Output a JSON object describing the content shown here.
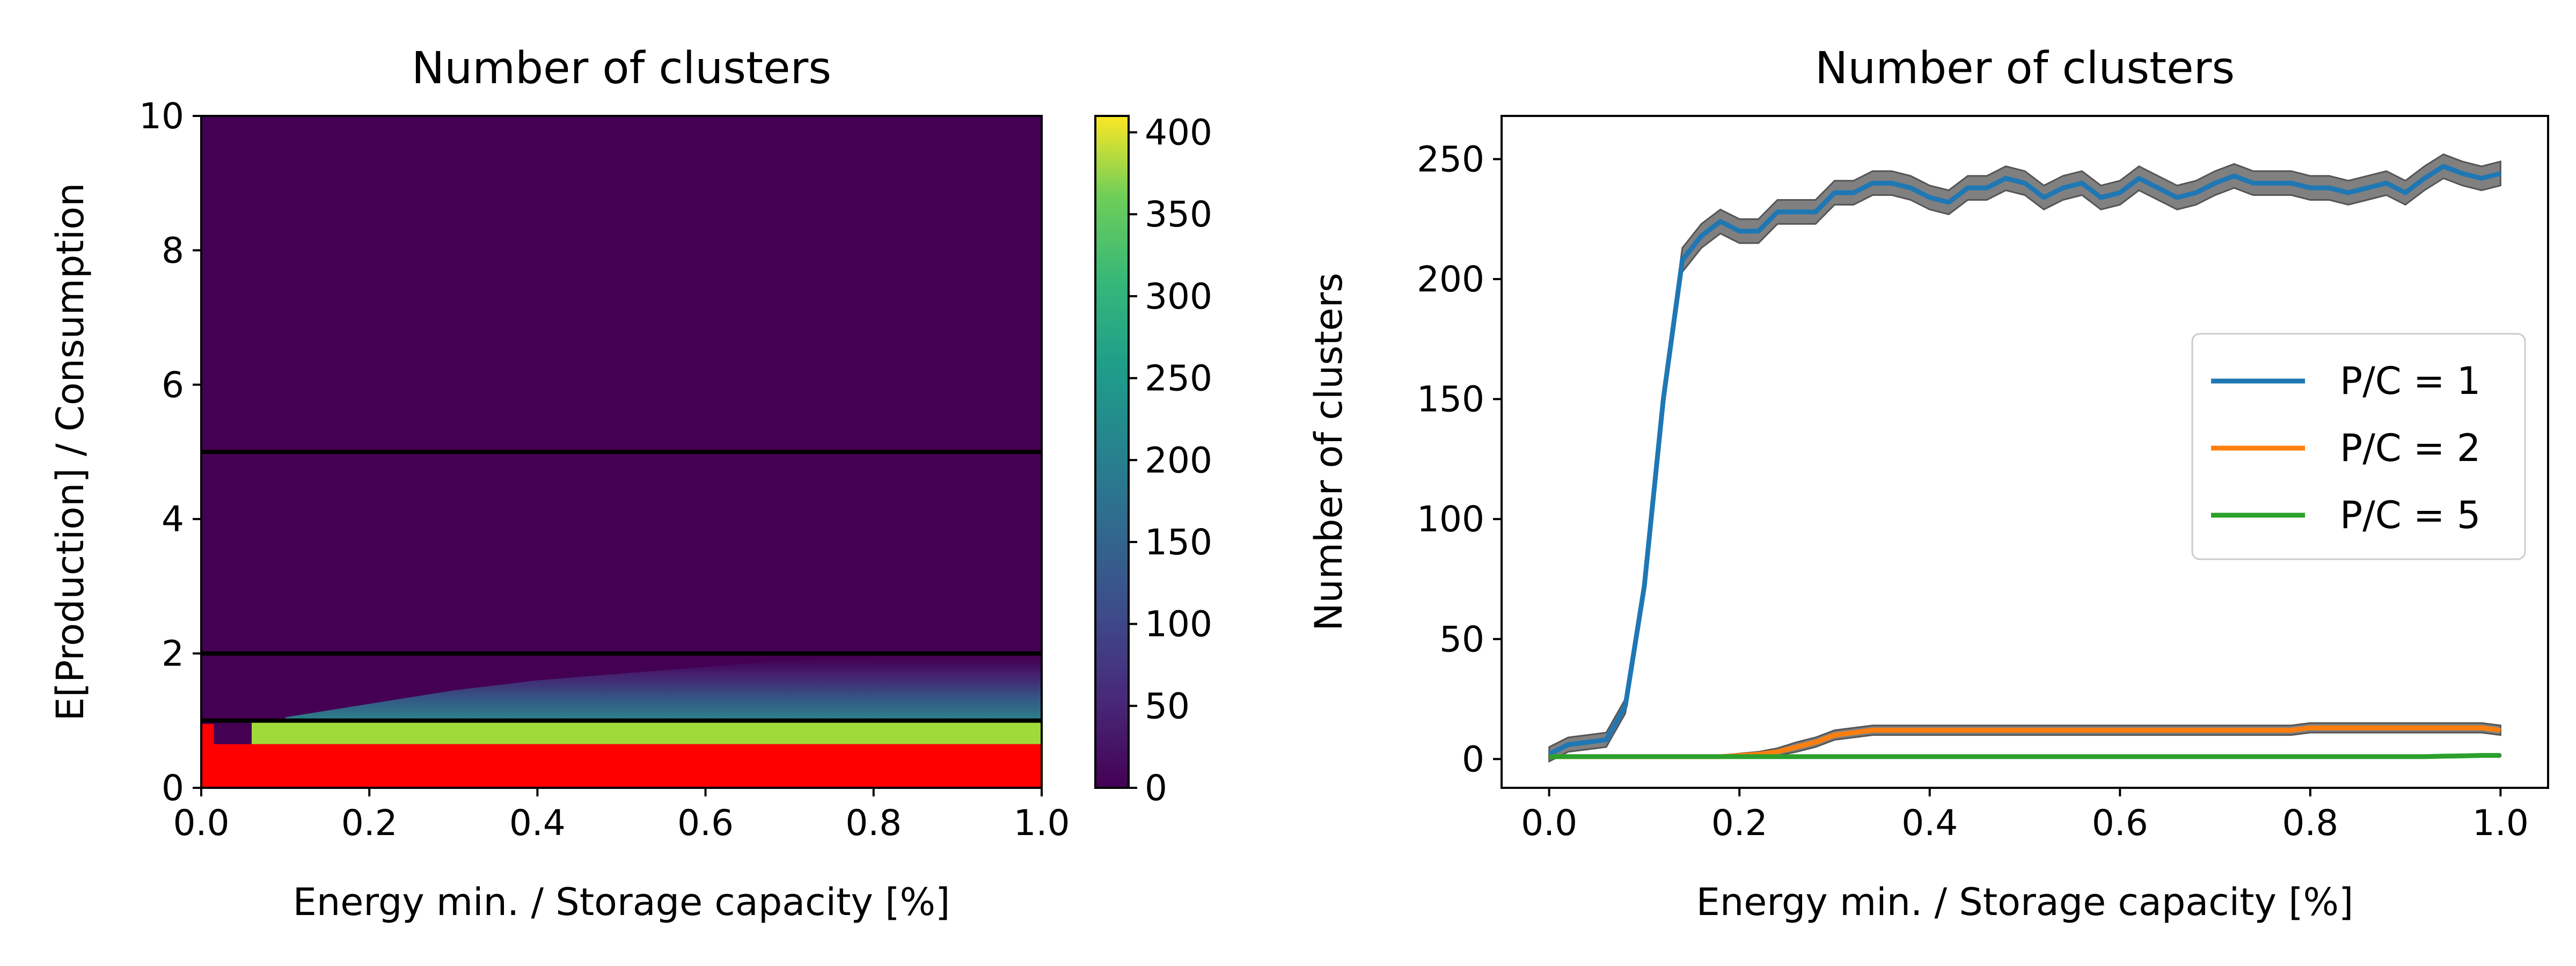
{
  "chart_data": [
    {
      "type": "heatmap",
      "title": "Number of clusters",
      "xlabel": "Energy min. / Storage capacity [%]",
      "ylabel": "E[Production] / Consumption",
      "xlim": [
        0.0,
        1.0
      ],
      "ylim": [
        0,
        10
      ],
      "xticks": [
        "0.0",
        "0.2",
        "0.4",
        "0.6",
        "0.8",
        "1.0"
      ],
      "yticks": [
        "0",
        "2",
        "4",
        "6",
        "8",
        "10"
      ],
      "colorbar": {
        "range": [
          0,
          410
        ],
        "ticks": [
          "0",
          "50",
          "100",
          "150",
          "200",
          "250",
          "300",
          "350",
          "400"
        ],
        "colormap": "viridis"
      },
      "reference_lines_y": [
        1,
        2,
        5
      ],
      "reference_line_color": "#000000",
      "infeasible_region": {
        "y_below": 0.65,
        "x_below_to_y": 0.95,
        "x_limit": 0.015,
        "color": "#ff0000"
      },
      "bright_band": {
        "y_range": [
          0.65,
          1.0
        ],
        "x_start": 0.06,
        "value": 360
      },
      "background_value": 0,
      "background_color": "#440154",
      "description_values": {
        "x": [
          0.1,
          0.2,
          0.3,
          0.4,
          0.5,
          0.6,
          0.7,
          0.8,
          0.9,
          1.0
        ],
        "plume_top_y": [
          1.05,
          1.25,
          1.45,
          1.6,
          1.7,
          1.8,
          1.9,
          1.95,
          2.0,
          2.0
        ]
      }
    },
    {
      "type": "line",
      "title": "Number of clusters",
      "xlabel": "Energy min. / Storage capacity [%]",
      "ylabel": "Number of clusters",
      "xlim": [
        -0.05,
        1.05
      ],
      "ylim": [
        -12,
        268
      ],
      "xticks": [
        "0.0",
        "0.2",
        "0.4",
        "0.6",
        "0.8",
        "1.0"
      ],
      "yticks": [
        "0",
        "50",
        "100",
        "150",
        "200",
        "250"
      ],
      "legend_position": "center-right",
      "band_color": "#808080",
      "x": [
        0.0,
        0.02,
        0.04,
        0.06,
        0.08,
        0.1,
        0.12,
        0.14,
        0.16,
        0.18,
        0.2,
        0.22,
        0.24,
        0.26,
        0.28,
        0.3,
        0.32,
        0.34,
        0.36,
        0.38,
        0.4,
        0.42,
        0.44,
        0.46,
        0.48,
        0.5,
        0.52,
        0.54,
        0.56,
        0.58,
        0.6,
        0.62,
        0.64,
        0.66,
        0.68,
        0.7,
        0.72,
        0.74,
        0.76,
        0.78,
        0.8,
        0.82,
        0.84,
        0.86,
        0.88,
        0.9,
        0.92,
        0.94,
        0.96,
        0.98,
        1.0
      ],
      "series": [
        {
          "name": "P/C = 1",
          "color": "#1f77b4",
          "values": [
            2,
            6,
            7,
            8,
            22,
            72,
            150,
            208,
            218,
            224,
            220,
            220,
            228,
            228,
            228,
            236,
            236,
            240,
            240,
            238,
            234,
            232,
            238,
            238,
            242,
            240,
            234,
            238,
            240,
            234,
            236,
            242,
            238,
            234,
            236,
            240,
            243,
            240,
            240,
            240,
            238,
            238,
            236,
            238,
            240,
            236,
            242,
            247,
            244,
            242,
            244
          ],
          "band": [
            3,
            3,
            3,
            3,
            3,
            3,
            4,
            5,
            5,
            5,
            5,
            5,
            5,
            5,
            5,
            5,
            5,
            5,
            5,
            5,
            5,
            5,
            5,
            5,
            5,
            5,
            5,
            5,
            5,
            5,
            5,
            5,
            5,
            5,
            5,
            5,
            5,
            5,
            5,
            5,
            5,
            5,
            5,
            5,
            5,
            5,
            5,
            5,
            5,
            5,
            5
          ]
        },
        {
          "name": "P/C = 2",
          "color": "#ff7f0e",
          "values": [
            1,
            1,
            1,
            1,
            1,
            1,
            1,
            1,
            1,
            1,
            1.5,
            2,
            3,
            5,
            7,
            10,
            11,
            12,
            12,
            12,
            12,
            12,
            12,
            12,
            12,
            12,
            12,
            12,
            12,
            12,
            12,
            12,
            12,
            12,
            12,
            12,
            12,
            12,
            12,
            12,
            13,
            13,
            13,
            13,
            13,
            13,
            13,
            13,
            13,
            13,
            12
          ],
          "band": [
            0.5,
            0.5,
            0.5,
            0.5,
            0.5,
            0.5,
            0.5,
            0.5,
            0.5,
            0.5,
            0.8,
            1,
            1.5,
            2,
            2,
            2,
            2,
            2,
            2,
            2,
            2,
            2,
            2,
            2,
            2,
            2,
            2,
            2,
            2,
            2,
            2,
            2,
            2,
            2,
            2,
            2,
            2,
            2,
            2,
            2,
            2,
            2,
            2,
            2,
            2,
            2,
            2,
            2,
            2,
            2,
            2
          ]
        },
        {
          "name": "P/C = 5",
          "color": "#2ca02c",
          "values": [
            1,
            1,
            1,
            1,
            1,
            1,
            1,
            1,
            1,
            1,
            1,
            1,
            1,
            1,
            1,
            1,
            1,
            1,
            1,
            1,
            1,
            1,
            1,
            1,
            1,
            1,
            1,
            1,
            1,
            1,
            1,
            1,
            1,
            1,
            1,
            1,
            1,
            1,
            1,
            1,
            1,
            1,
            1,
            1,
            1,
            1,
            1,
            1.2,
            1.3,
            1.5,
            1.5
          ],
          "band": [
            0.3,
            0.3,
            0.3,
            0.3,
            0.3,
            0.3,
            0.3,
            0.3,
            0.3,
            0.3,
            0.3,
            0.3,
            0.3,
            0.3,
            0.3,
            0.3,
            0.3,
            0.3,
            0.3,
            0.3,
            0.3,
            0.3,
            0.3,
            0.3,
            0.3,
            0.3,
            0.3,
            0.3,
            0.3,
            0.3,
            0.3,
            0.3,
            0.3,
            0.3,
            0.3,
            0.3,
            0.3,
            0.3,
            0.3,
            0.3,
            0.3,
            0.3,
            0.3,
            0.3,
            0.3,
            0.3,
            0.3,
            0.3,
            0.3,
            0.3,
            0.3
          ]
        }
      ]
    }
  ]
}
